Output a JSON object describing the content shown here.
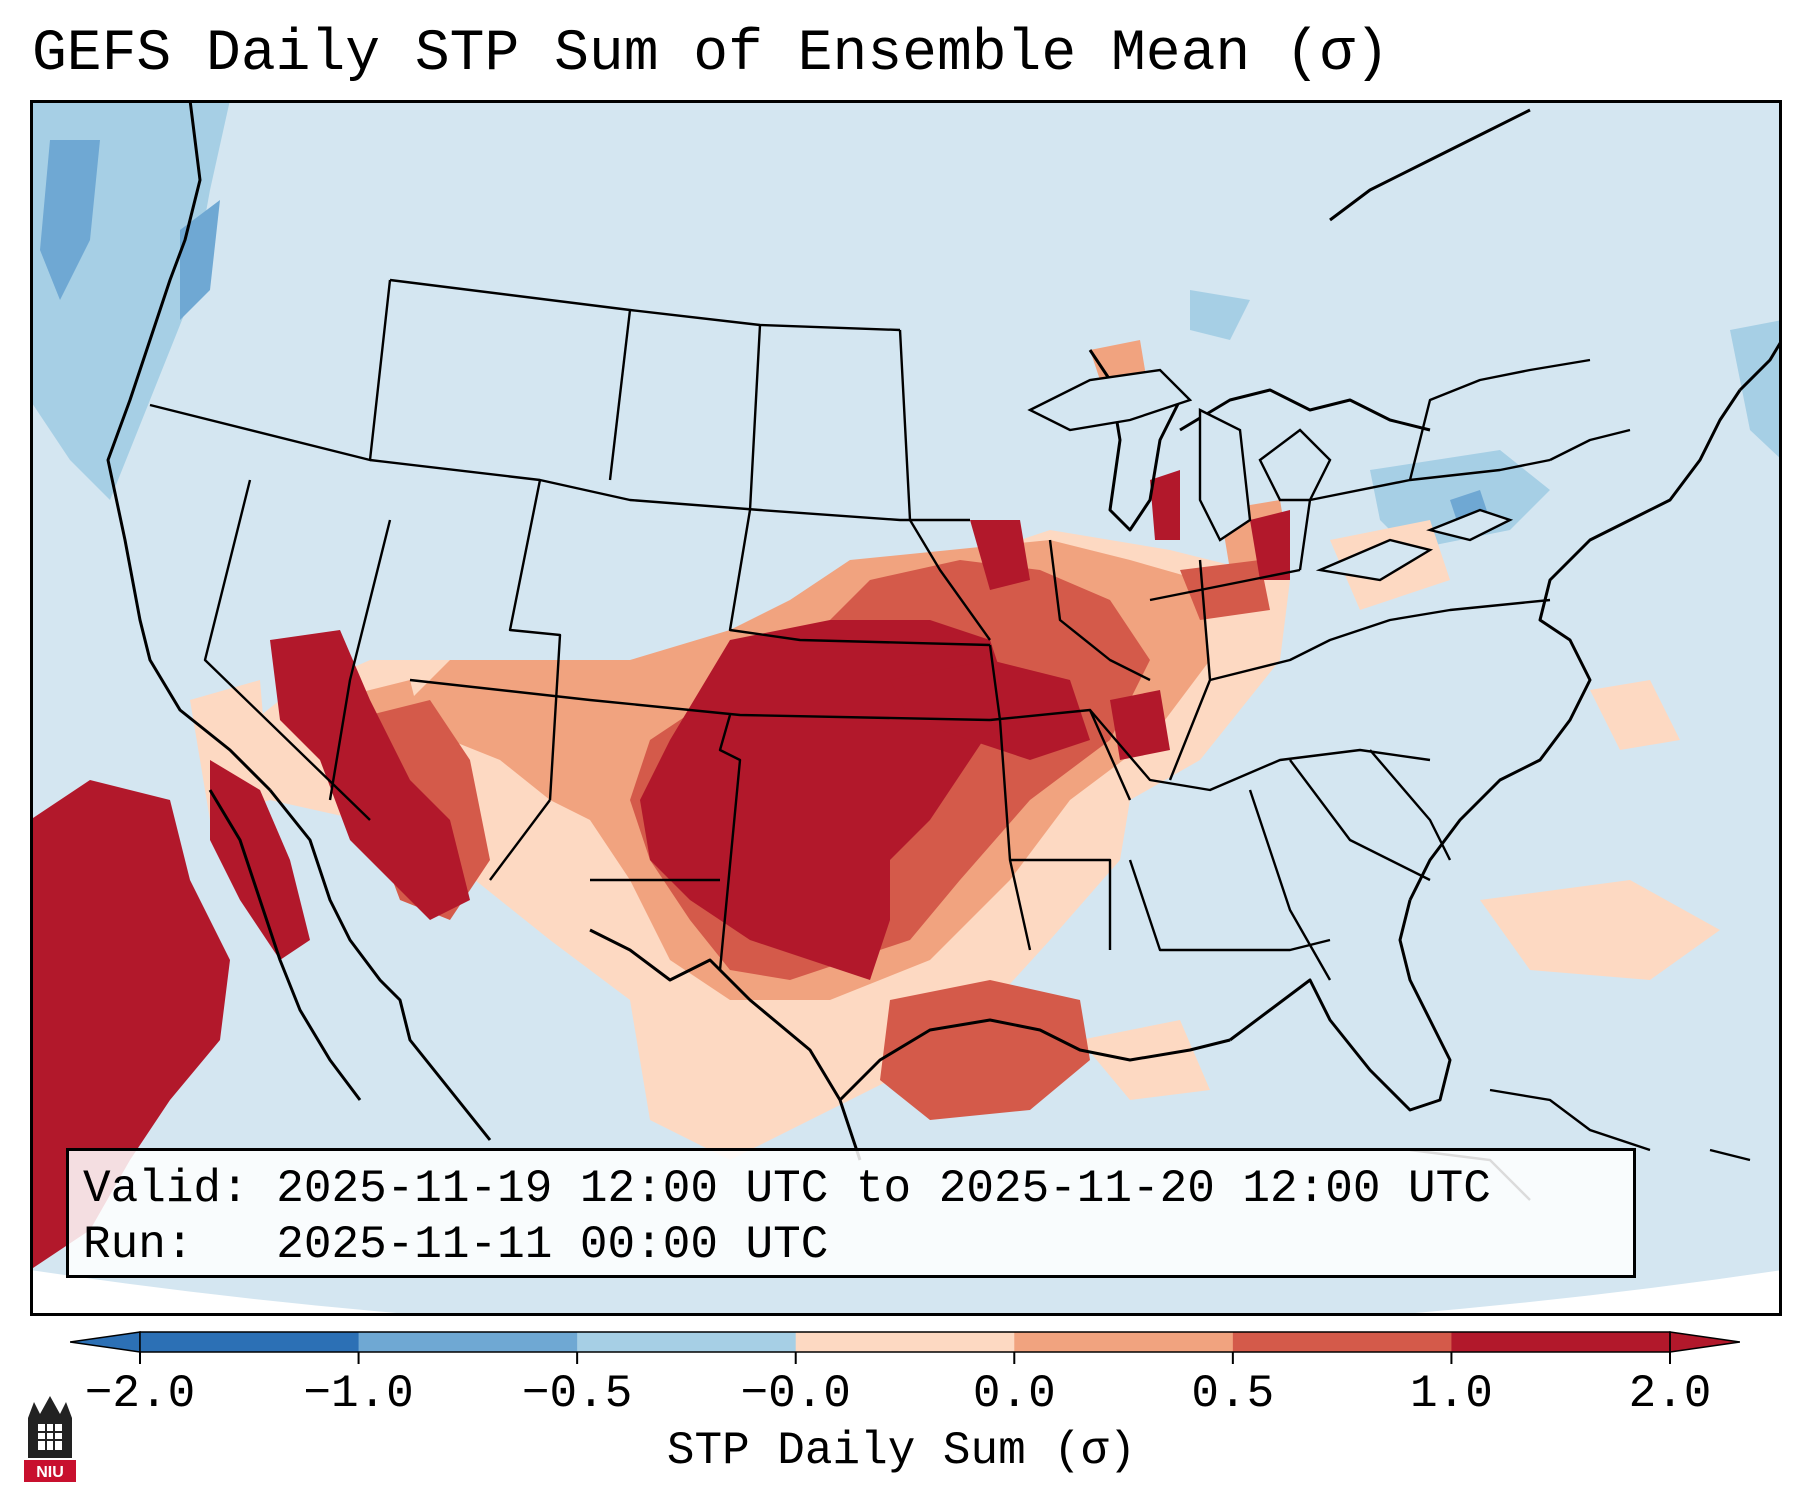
{
  "title": "GEFS Daily STP Sum of Ensemble Mean (σ)",
  "info": {
    "valid_label": "Valid:",
    "valid_value": "2025-11-19 12:00 UTC to 2025-11-20 12:00 UTC",
    "run_label": "Run:",
    "run_value": "2025-11-11 00:00 UTC"
  },
  "colorbar": {
    "label": "STP Daily Sum (σ)",
    "ticks": [
      "−2.0",
      "−1.0",
      "−0.5",
      "−0.0",
      "0.0",
      "0.5",
      "1.0",
      "2.0"
    ],
    "colors": [
      "#2c70b5",
      "#6fa8d3",
      "#a6cfe5",
      "#d4e6f1",
      "#fdd9c2",
      "#f1a37f",
      "#d45a4a",
      "#b2182b"
    ],
    "extend": "both"
  },
  "map": {
    "projection": "Lambert conformal, CONUS",
    "background_color": "#d4e6f1",
    "map_colors": {
      "neg_light": "#a6cfe5",
      "neg_med": "#6fa8d3",
      "pos_light": "#fdd9c2",
      "pos_med": "#f1a37f",
      "pos_strong": "#d45a4a",
      "pos_max": "#b2182b"
    }
  },
  "logo": {
    "name": "NIU"
  }
}
